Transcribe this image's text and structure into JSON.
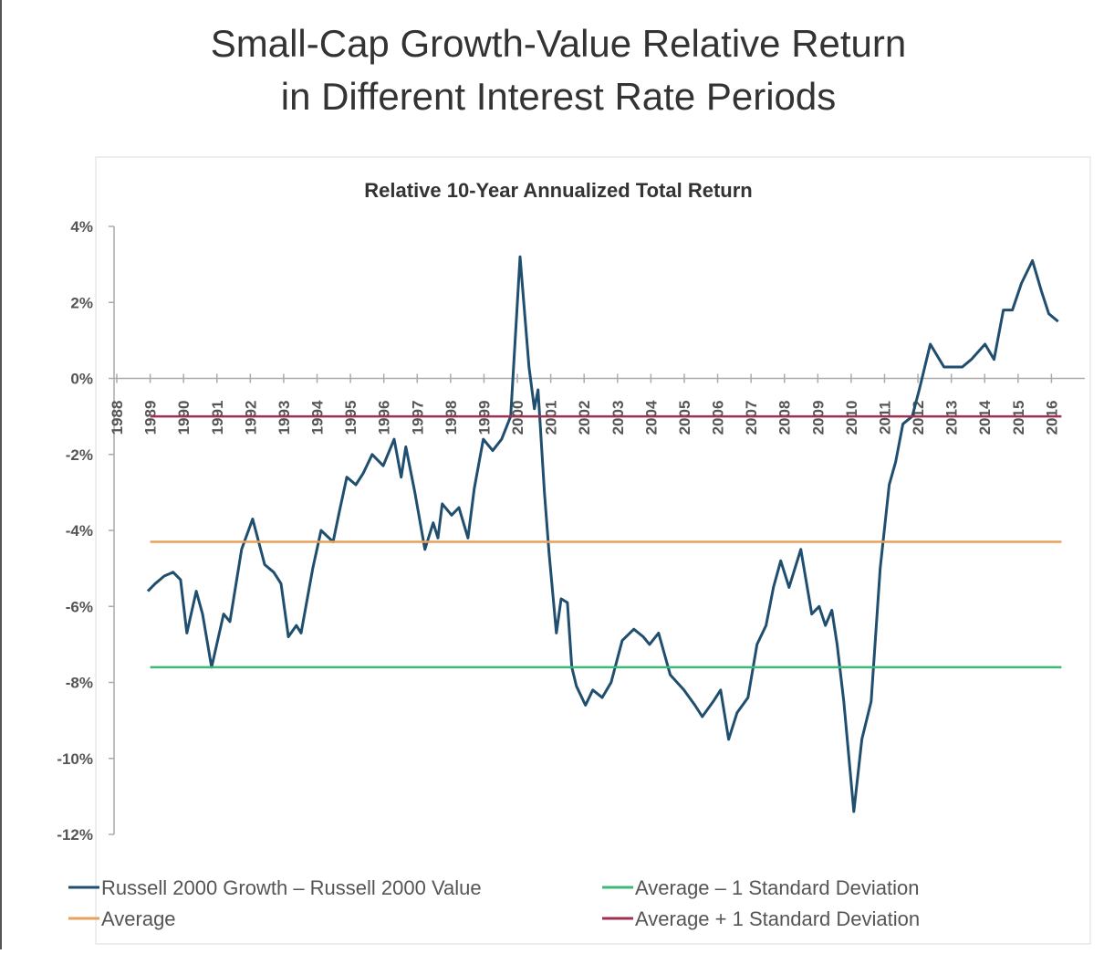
{
  "chart_data": {
    "type": "line",
    "title": "Small-Cap Growth-Value Relative Return\nin Different Interest Rate Periods",
    "subtitle": "Relative 10-Year Annualized Total Return",
    "xlim": [
      1988,
      2017
    ],
    "xticks": [
      1988,
      1989,
      1990,
      1991,
      1992,
      1993,
      1994,
      1995,
      1996,
      1997,
      1998,
      1999,
      2000,
      2001,
      2002,
      2003,
      2004,
      2005,
      2006,
      2007,
      2008,
      2009,
      2010,
      2011,
      2012,
      2013,
      2014,
      2015,
      2016
    ],
    "ylim": [
      -12,
      4
    ],
    "yticks": [
      {
        "value": 4,
        "label": "4%"
      },
      {
        "value": 2,
        "label": "2%"
      },
      {
        "value": 0,
        "label": "0%"
      },
      {
        "value": -2,
        "label": "-2%"
      },
      {
        "value": -4,
        "label": "-4%"
      },
      {
        "value": -6,
        "label": "-6%"
      },
      {
        "value": -8,
        "label": "-8%"
      },
      {
        "value": -10,
        "label": "-10%"
      },
      {
        "value": -12,
        "label": "-12%"
      }
    ],
    "series": [
      {
        "name": "Russell 2000 Growth – Russell 2000 Value",
        "color": "#1f4e6e",
        "x": [
          1988.93,
          1989.15,
          1989.42,
          1989.69,
          1989.91,
          1990.1,
          1990.38,
          1990.57,
          1990.84,
          1991.2,
          1991.39,
          1991.74,
          1992.07,
          1992.43,
          1992.7,
          1992.92,
          1993.14,
          1993.38,
          1993.52,
          1993.87,
          1994.12,
          1994.48,
          1994.67,
          1994.89,
          1995.16,
          1995.38,
          1995.65,
          1995.98,
          1996.31,
          1996.52,
          1996.66,
          1996.93,
          1997.23,
          1997.48,
          1997.62,
          1997.75,
          1998.03,
          1998.25,
          1998.52,
          1998.71,
          1998.98,
          1999.26,
          1999.53,
          1999.8,
          2000.08,
          2000.35,
          2000.51,
          2000.62,
          2000.81,
          2000.95,
          2001.17,
          2001.31,
          2001.5,
          2001.63,
          2001.77,
          2002.04,
          2002.26,
          2002.54,
          2002.81,
          2003.14,
          2003.49,
          2003.77,
          2003.96,
          2004.23,
          2004.58,
          2004.99,
          2005.32,
          2005.54,
          2005.87,
          2006.09,
          2006.33,
          2006.58,
          2006.91,
          2007.18,
          2007.45,
          2007.67,
          2007.89,
          2008.14,
          2008.49,
          2008.82,
          2009.04,
          2009.23,
          2009.42,
          2009.58,
          2009.78,
          2010.08,
          2010.32,
          2010.6,
          2010.87,
          2011.14,
          2011.33,
          2011.55,
          2011.83,
          2012.04,
          2012.37,
          2012.78,
          2013.33,
          2013.6,
          2014.01,
          2014.28,
          2014.56,
          2014.83,
          2015.1,
          2015.43,
          2015.7,
          2015.92,
          2016.2
        ],
        "values": [
          -5.6,
          -5.4,
          -5.2,
          -5.1,
          -5.3,
          -6.7,
          -5.6,
          -6.2,
          -7.6,
          -6.2,
          -6.4,
          -4.5,
          -3.7,
          -4.9,
          -5.1,
          -5.4,
          -6.8,
          -6.5,
          -6.7,
          -5.0,
          -4.0,
          -4.3,
          -3.5,
          -2.6,
          -2.8,
          -2.5,
          -2.0,
          -2.3,
          -1.6,
          -2.6,
          -1.8,
          -3.0,
          -4.5,
          -3.8,
          -4.2,
          -3.3,
          -3.6,
          -3.4,
          -4.2,
          -2.9,
          -1.6,
          -1.9,
          -1.6,
          -1.0,
          3.2,
          0.3,
          -0.8,
          -0.3,
          -3.0,
          -4.6,
          -6.7,
          -5.8,
          -5.9,
          -7.6,
          -8.1,
          -8.6,
          -8.2,
          -8.4,
          -8.0,
          -6.9,
          -6.6,
          -6.8,
          -7.0,
          -6.7,
          -7.8,
          -8.2,
          -8.6,
          -8.9,
          -8.5,
          -8.2,
          -9.5,
          -8.8,
          -8.4,
          -7.0,
          -6.5,
          -5.5,
          -4.8,
          -5.5,
          -4.5,
          -6.2,
          -6.0,
          -6.5,
          -6.1,
          -7.0,
          -8.5,
          -11.4,
          -9.5,
          -8.5,
          -5.0,
          -2.8,
          -2.2,
          -1.2,
          -1.0,
          -0.3,
          0.9,
          0.3,
          0.3,
          0.5,
          0.9,
          0.5,
          1.8,
          1.8,
          2.5,
          3.1,
          2.3,
          1.7,
          1.5
        ]
      },
      {
        "name": "Average",
        "color": "#e8a15a",
        "x": [
          1989,
          2016.3
        ],
        "values": [
          -4.3,
          -4.3
        ]
      },
      {
        "name": "Average – 1 Standard Deviation",
        "color": "#3cb878",
        "x": [
          1989,
          2016.3
        ],
        "values": [
          -7.6,
          -7.6
        ]
      },
      {
        "name": "Average + 1 Standard Deviation",
        "color": "#a03050",
        "x": [
          1989,
          2016.3
        ],
        "values": [
          -1.0,
          -1.0
        ]
      }
    ]
  }
}
